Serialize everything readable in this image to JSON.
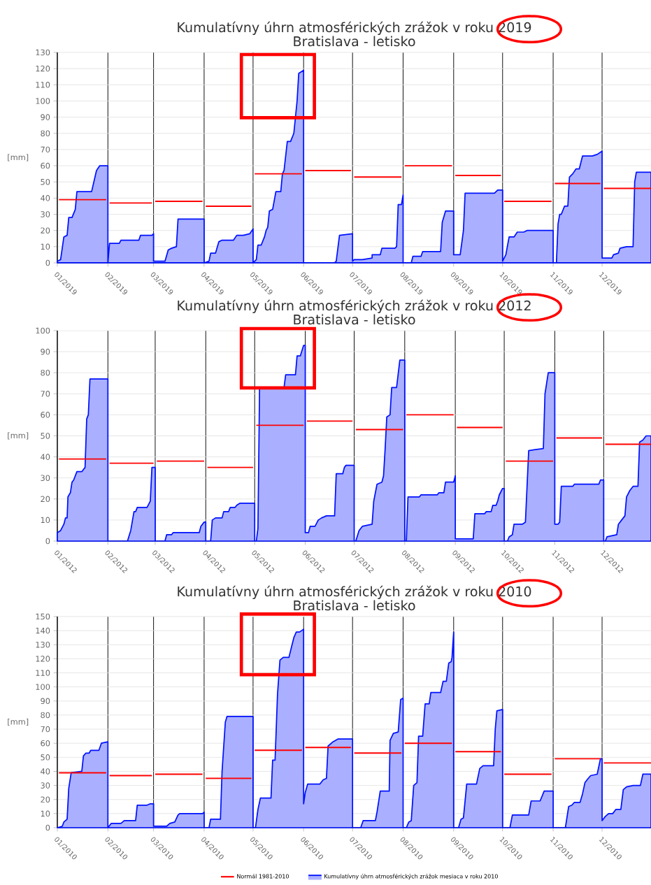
{
  "chart_data": [
    {
      "type": "area",
      "title": "Kumulatívny úhrn atmosférických zrážok v roku 2019",
      "subtitle": "Bratislava - letisko",
      "ylabel": "[mm]",
      "xlim": [
        "2019-01-01",
        "2019-12-31"
      ],
      "ylim": [
        0,
        130
      ],
      "xticks": [
        {
          "value": "2019-01",
          "label": "01/2019"
        },
        {
          "value": "2019-02",
          "label": "02/2019"
        },
        {
          "value": "2019-03",
          "label": "03/2019"
        },
        {
          "value": "2019-04",
          "label": "04/2019"
        },
        {
          "value": "2019-05",
          "label": "05/2019"
        },
        {
          "value": "2019-06",
          "label": "06/2019"
        },
        {
          "value": "2019-07",
          "label": "07/2019"
        },
        {
          "value": "2019-08",
          "label": "08/2019"
        },
        {
          "value": "2019-09",
          "label": "09/2019"
        },
        {
          "value": "2019-10",
          "label": "10/2019"
        },
        {
          "value": "2019-11",
          "label": "11/2019"
        },
        {
          "value": "2019-12",
          "label": "12/2019"
        }
      ],
      "yticks": [
        0,
        10,
        20,
        30,
        40,
        50,
        60,
        70,
        80,
        90,
        100,
        110,
        120,
        130
      ],
      "grid": true,
      "legend": false,
      "series": [
        {
          "type": "line",
          "color": "#ff0000",
          "x": [
            "2019-01-02",
            "2019-01-31",
            "2019-02-01",
            "2019-02-02",
            "2019-02-28",
            "2019-03-01",
            "2019-03-02",
            "2019-03-31",
            "2019-04-01",
            "2019-04-02",
            "2019-04-30",
            "2019-05-01",
            "2019-05-02",
            "2019-05-31",
            "2019-06-01",
            "2019-06-02",
            "2019-06-30",
            "2019-07-01",
            "2019-07-02",
            "2019-07-31",
            "2019-08-01",
            "2019-08-02",
            "2019-08-31",
            "2019-09-01",
            "2019-09-02",
            "2019-09-30",
            "2019-10-01",
            "2019-10-02",
            "2019-10-31",
            "2019-11-01",
            "2019-11-02",
            "2019-11-30",
            "2019-12-01",
            "2019-12-02",
            "2019-12-31"
          ],
          "values": [
            39,
            39,
            null,
            37,
            37,
            null,
            38,
            38,
            null,
            35,
            35,
            null,
            55,
            55,
            null,
            57,
            57,
            null,
            53,
            53,
            null,
            60,
            60,
            null,
            54,
            54,
            null,
            38,
            38,
            null,
            49,
            49,
            null,
            46,
            46
          ]
        },
        {
          "color": "#aab0ff",
          "x": [
            "2019-01-01",
            "2019-01-03",
            "2019-01-05",
            "2019-01-07",
            "2019-01-08",
            "2019-01-10",
            "2019-01-12",
            "2019-01-13",
            "2019-01-22",
            "2019-01-25",
            "2019-01-27",
            "2019-02-01",
            "2019-02-01",
            "2019-02-02",
            "2019-02-08",
            "2019-02-09",
            "2019-02-20",
            "2019-02-21",
            "2019-02-28",
            "2019-03-01",
            "2019-03-01",
            "2019-03-08",
            "2019-03-10",
            "2019-03-12",
            "2019-03-15",
            "2019-03-16",
            "2019-04-01",
            "2019-04-01",
            "2019-04-04",
            "2019-04-05",
            "2019-04-08",
            "2019-04-10",
            "2019-04-12",
            "2019-04-19",
            "2019-04-21",
            "2019-04-25",
            "2019-04-29",
            "2019-05-01",
            "2019-05-01",
            "2019-05-03",
            "2019-05-04",
            "2019-05-06",
            "2019-05-08",
            "2019-05-09",
            "2019-05-10",
            "2019-05-11",
            "2019-05-13",
            "2019-05-15",
            "2019-05-18",
            "2019-05-19",
            "2019-05-20",
            "2019-05-22",
            "2019-05-24",
            "2019-05-26",
            "2019-05-28",
            "2019-05-29",
            "2019-06-01",
            "2019-06-01",
            "2019-06-20",
            "2019-06-21",
            "2019-06-23",
            "2019-07-01",
            "2019-07-01",
            "2019-07-02",
            "2019-07-07",
            "2019-07-13",
            "2019-07-13",
            "2019-07-18",
            "2019-07-19",
            "2019-07-27",
            "2019-07-28",
            "2019-07-29",
            "2019-07-31",
            "2019-08-01",
            "2019-08-01",
            "2019-08-06",
            "2019-08-07",
            "2019-08-12",
            "2019-08-13",
            "2019-08-24",
            "2019-08-25",
            "2019-08-27",
            "2019-09-01",
            "2019-09-01",
            "2019-09-05",
            "2019-09-07",
            "2019-09-08",
            "2019-09-26",
            "2019-09-28",
            "2019-10-01",
            "2019-10-01",
            "2019-10-03",
            "2019-10-05",
            "2019-10-08",
            "2019-10-10",
            "2019-10-14",
            "2019-10-16",
            "2019-11-01",
            "2019-11-01",
            "2019-11-03",
            "2019-11-04",
            "2019-11-05",
            "2019-11-06",
            "2019-11-08",
            "2019-11-10",
            "2019-11-11",
            "2019-11-13",
            "2019-11-15",
            "2019-11-17",
            "2019-11-19",
            "2019-11-25",
            "2019-11-28",
            "2019-12-01",
            "2019-12-01",
            "2019-12-07",
            "2019-12-08",
            "2019-12-11",
            "2019-12-12",
            "2019-12-16",
            "2019-12-20",
            "2019-12-21",
            "2019-12-22",
            "2019-12-31"
          ],
          "values": [
            1,
            2,
            16,
            17,
            28,
            28,
            33,
            44,
            44,
            57,
            60,
            60,
            0,
            12,
            12,
            14,
            14,
            17,
            17,
            18,
            1,
            1,
            8,
            9,
            10,
            27,
            27,
            0,
            1,
            6,
            6,
            13,
            14,
            14,
            17,
            17,
            18,
            21,
            0,
            2,
            11,
            11,
            16,
            20,
            22,
            32,
            33,
            44,
            44,
            55,
            57,
            75,
            75,
            80,
            100,
            117,
            119,
            0,
            0,
            1,
            17,
            18,
            1,
            2,
            2,
            3,
            5,
            5,
            9,
            9,
            10,
            36,
            36,
            42,
            0,
            0,
            4,
            4,
            7,
            7,
            25,
            32,
            32,
            5,
            5,
            20,
            43,
            43,
            45,
            45,
            1,
            5,
            16,
            16,
            19,
            19,
            20,
            20,
            0,
            0,
            24,
            30,
            30,
            35,
            35,
            53,
            55,
            58,
            58,
            66,
            66,
            67,
            69,
            3,
            3,
            5,
            6,
            9,
            10,
            10,
            50,
            56,
            56
          ]
        }
      ]
    },
    {
      "type": "area",
      "title": "Kumulatívny úhrn atmosférických zrážok v roku 2012",
      "subtitle": "Bratislava - letisko",
      "ylabel": "[mm]",
      "xlim": [
        "2012-01-01",
        "2012-12-30"
      ],
      "ylim": [
        0,
        100
      ],
      "xticks": [
        {
          "value": "2012-01",
          "label": "01/2012"
        },
        {
          "value": "2012-02",
          "label": "02/2012"
        },
        {
          "value": "2012-03",
          "label": "03/2012"
        },
        {
          "value": "2012-04",
          "label": "04/2012"
        },
        {
          "value": "2012-05",
          "label": "05/2012"
        },
        {
          "value": "2012-06",
          "label": "06/2012"
        },
        {
          "value": "2012-07",
          "label": "07/2012"
        },
        {
          "value": "2012-08",
          "label": "08/2012"
        },
        {
          "value": "2012-09",
          "label": "09/2012"
        },
        {
          "value": "2012-10",
          "label": "10/2012"
        },
        {
          "value": "2012-11",
          "label": "11/2012"
        },
        {
          "value": "2012-12",
          "label": "12/2012"
        }
      ],
      "yticks": [
        0,
        10,
        20,
        30,
        40,
        50,
        60,
        70,
        80,
        90,
        100
      ],
      "grid": true,
      "legend": false,
      "series": [
        {
          "type": "line",
          "color": "#ff0000",
          "x": [
            "2012-01-02",
            "2012-01-31",
            "2012-02-01",
            "2012-02-02",
            "2012-02-29",
            "2012-03-01",
            "2012-03-02",
            "2012-03-31",
            "2012-04-01",
            "2012-04-02",
            "2012-04-30",
            "2012-05-01",
            "2012-05-02",
            "2012-05-31",
            "2012-06-01",
            "2012-06-02",
            "2012-06-30",
            "2012-07-01",
            "2012-07-02",
            "2012-07-31",
            "2012-08-01",
            "2012-08-02",
            "2012-08-31",
            "2012-09-01",
            "2012-09-02",
            "2012-09-30",
            "2012-10-01",
            "2012-10-02",
            "2012-10-31",
            "2012-11-01",
            "2012-11-02",
            "2012-11-30",
            "2012-12-01",
            "2012-12-02",
            "2012-12-30"
          ],
          "values": [
            39,
            39,
            null,
            37,
            37,
            null,
            38,
            38,
            null,
            35,
            35,
            null,
            55,
            55,
            null,
            57,
            57,
            null,
            53,
            53,
            null,
            60,
            60,
            null,
            54,
            54,
            null,
            38,
            38,
            null,
            49,
            49,
            null,
            46,
            46
          ]
        },
        {
          "color": "#aab0ff",
          "x": [
            "2012-01-01",
            "2012-01-03",
            "2012-01-05",
            "2012-01-06",
            "2012-01-07",
            "2012-01-07T12:00",
            "2012-01-09",
            "2012-01-10",
            "2012-01-11",
            "2012-01-13",
            "2012-01-16",
            "2012-01-18",
            "2012-01-19",
            "2012-01-20",
            "2012-01-21",
            "2012-02-01",
            "2012-02-01",
            "2012-02-13",
            "2012-02-15",
            "2012-02-17",
            "2012-02-18",
            "2012-02-19",
            "2012-02-25",
            "2012-02-27",
            "2012-02-28",
            "2012-02-29",
            "2012-03-01",
            "2012-03-01",
            "2012-03-07",
            "2012-03-08",
            "2012-03-11",
            "2012-03-12",
            "2012-03-28",
            "2012-03-29",
            "2012-03-31",
            "2012-04-01",
            "2012-04-01",
            "2012-04-04",
            "2012-04-05",
            "2012-04-07",
            "2012-04-11",
            "2012-04-12",
            "2012-04-15",
            "2012-04-16",
            "2012-04-19",
            "2012-04-20",
            "2012-04-22",
            "2012-05-01",
            "2012-05-01",
            "2012-05-02",
            "2012-05-03",
            "2012-05-04",
            "2012-05-19",
            "2012-05-20",
            "2012-05-26",
            "2012-05-27",
            "2012-05-29",
            "2012-05-31",
            "2012-06-01",
            "2012-06-01",
            "2012-06-03",
            "2012-06-04",
            "2012-06-07",
            "2012-06-09",
            "2012-06-11",
            "2012-06-14",
            "2012-06-19",
            "2012-06-20",
            "2012-06-24",
            "2012-06-25",
            "2012-06-26",
            "2012-07-01",
            "2012-07-01",
            "2012-07-02",
            "2012-07-04",
            "2012-07-06",
            "2012-07-12",
            "2012-07-13",
            "2012-07-15",
            "2012-07-18",
            "2012-07-19",
            "2012-07-20",
            "2012-07-21",
            "2012-07-23",
            "2012-07-24",
            "2012-07-27",
            "2012-07-29",
            "2012-08-01",
            "2012-08-01",
            "2012-08-02",
            "2012-08-03",
            "2012-08-10",
            "2012-08-11",
            "2012-08-21",
            "2012-08-22",
            "2012-08-25",
            "2012-08-26",
            "2012-08-31",
            "2012-09-01",
            "2012-09-01",
            "2012-09-12",
            "2012-09-13",
            "2012-09-19",
            "2012-09-20",
            "2012-09-23",
            "2012-09-24",
            "2012-09-26",
            "2012-09-27",
            "2012-09-28",
            "2012-09-30",
            "2012-10-01",
            "2012-10-01",
            "2012-10-03",
            "2012-10-04",
            "2012-10-06",
            "2012-10-07",
            "2012-10-12",
            "2012-10-14",
            "2012-10-16",
            "2012-10-25",
            "2012-10-26",
            "2012-10-28",
            "2012-11-01",
            "2012-11-01",
            "2012-11-03",
            "2012-11-04",
            "2012-11-05",
            "2012-11-12",
            "2012-11-13",
            "2012-11-28",
            "2012-11-29",
            "2012-12-01",
            "2012-12-01",
            "2012-12-02",
            "2012-12-03",
            "2012-12-09",
            "2012-12-10",
            "2012-12-12",
            "2012-12-14",
            "2012-12-15",
            "2012-12-17",
            "2012-12-19",
            "2012-12-22",
            "2012-12-23",
            "2012-12-25",
            "2012-12-27",
            "2012-12-30"
          ],
          "values": [
            4,
            5,
            8,
            11,
            11,
            21,
            23,
            28,
            29,
            33,
            33,
            35,
            58,
            60,
            77,
            77,
            0,
            0,
            5,
            14,
            14,
            16,
            16,
            19,
            35,
            35,
            35,
            0,
            0,
            3,
            3,
            4,
            4,
            7,
            9,
            9,
            0,
            0,
            10,
            11,
            11,
            14,
            14,
            16,
            16,
            17,
            18,
            18,
            0,
            0,
            6,
            73,
            73,
            79,
            79,
            88,
            88,
            93,
            93,
            4,
            4,
            7,
            7,
            10,
            11,
            12,
            12,
            32,
            32,
            35,
            36,
            36,
            0,
            0,
            5,
            7,
            8,
            19,
            27,
            28,
            31,
            44,
            59,
            60,
            73,
            73,
            86,
            86,
            0,
            0,
            21,
            21,
            22,
            22,
            23,
            23,
            28,
            28,
            31,
            1,
            1,
            13,
            13,
            14,
            14,
            17,
            17,
            19,
            22,
            25,
            25,
            0,
            0,
            2,
            3,
            8,
            8,
            9,
            43,
            44,
            70,
            80,
            80,
            8,
            8,
            9,
            26,
            26,
            27,
            27,
            29,
            29,
            0,
            0,
            2,
            3,
            8,
            10,
            12,
            21,
            24,
            26,
            26,
            47,
            48,
            50,
            50
          ]
        }
      ]
    },
    {
      "type": "area",
      "title": "Kumulatívny úhrn atmosférických zrážok v roku 2010",
      "subtitle": "Bratislava - letisko",
      "ylabel": "[mm]",
      "xlim": [
        "2010-01-01",
        "2010-12-31"
      ],
      "ylim": [
        0,
        150
      ],
      "xticks": [
        {
          "value": "2010-01",
          "label": "01/2010"
        },
        {
          "value": "2010-02",
          "label": "02/2010"
        },
        {
          "value": "2010-03",
          "label": "03/2010"
        },
        {
          "value": "2010-04",
          "label": "04/2010"
        },
        {
          "value": "2010-05",
          "label": "05/2010"
        },
        {
          "value": "2010-06",
          "label": "06/2010"
        },
        {
          "value": "2010-07",
          "label": "07/2010"
        },
        {
          "value": "2010-08",
          "label": "08/2010"
        },
        {
          "value": "2010-09",
          "label": "09/2010"
        },
        {
          "value": "2010-10",
          "label": "10/2010"
        },
        {
          "value": "2010-11",
          "label": "11/2010"
        },
        {
          "value": "2010-12",
          "label": "12/2010"
        }
      ],
      "yticks": [
        0,
        10,
        20,
        30,
        40,
        50,
        60,
        70,
        80,
        90,
        100,
        110,
        120,
        130,
        140,
        150
      ],
      "grid": true,
      "legend": "bottom",
      "series": [
        {
          "type": "line",
          "name": "Normál 1981-2010",
          "color": "#ff0000",
          "x": [
            "2010-01-02",
            "2010-01-31",
            "2010-02-01",
            "2010-02-02",
            "2010-02-28",
            "2010-03-01",
            "2010-03-02",
            "2010-03-31",
            "2010-04-01",
            "2010-04-02",
            "2010-04-30",
            "2010-05-01",
            "2010-05-02",
            "2010-05-31",
            "2010-06-01",
            "2010-06-02",
            "2010-06-30",
            "2010-07-01",
            "2010-07-02",
            "2010-07-31",
            "2010-08-01",
            "2010-08-02",
            "2010-08-31",
            "2010-09-01",
            "2010-09-02",
            "2010-09-30",
            "2010-10-01",
            "2010-10-02",
            "2010-10-31",
            "2010-11-01",
            "2010-11-02",
            "2010-11-30",
            "2010-12-01",
            "2010-12-02",
            "2010-12-31"
          ],
          "values": [
            39,
            39,
            null,
            37,
            37,
            null,
            38,
            38,
            null,
            35,
            35,
            null,
            55,
            55,
            null,
            57,
            57,
            null,
            53,
            53,
            null,
            60,
            60,
            null,
            54,
            54,
            null,
            38,
            38,
            null,
            49,
            49,
            null,
            46,
            46
          ]
        },
        {
          "name": "Kumulatívny úhrn atmosférických zrážok mesiaca v roku 2010",
          "color": "#aab0ff",
          "x": [
            "2010-01-01",
            "2010-01-04",
            "2010-01-05",
            "2010-01-07",
            "2010-01-08",
            "2010-01-09T12:00",
            "2010-01-16",
            "2010-01-17",
            "2010-01-18T12:00",
            "2010-01-20T12:00",
            "2010-01-21T12:00",
            "2010-01-26T12:00",
            "2010-01-28",
            "2010-02-01",
            "2010-02-01",
            "2010-02-03",
            "2010-02-09",
            "2010-02-11",
            "2010-02-18",
            "2010-02-19",
            "2010-02-25",
            "2010-02-27",
            "2010-03-01",
            "2010-03-01",
            "2010-03-09",
            "2010-03-11",
            "2010-03-14",
            "2010-03-16",
            "2010-03-17",
            "2010-03-31",
            "2010-04-01",
            "2010-04-01",
            "2010-04-04",
            "2010-04-05",
            "2010-04-11",
            "2010-04-12",
            "2010-04-14",
            "2010-04-15",
            "2010-05-01",
            "2010-05-01",
            "2010-05-02T12:00",
            "2010-05-04",
            "2010-05-05T12:00",
            "2010-05-12",
            "2010-05-13",
            "2010-05-14T12:00",
            "2010-05-16",
            "2010-05-17T12:00",
            "2010-05-19T12:00",
            "2010-05-23",
            "2010-05-24T12:00",
            "2010-05-26",
            "2010-05-27T12:00",
            "2010-05-29T12:00",
            "2010-06-01",
            "2010-06-01",
            "2010-06-02",
            "2010-06-03T12:00",
            "2010-06-11",
            "2010-06-13",
            "2010-06-15",
            "2010-06-16",
            "2010-06-19",
            "2010-06-22",
            "2010-07-01",
            "2010-07-01",
            "2010-07-06",
            "2010-07-07T12:00",
            "2010-07-15",
            "2010-07-16",
            "2010-07-18",
            "2010-07-23T12:00",
            "2010-07-24",
            "2010-07-26",
            "2010-07-29",
            "2010-07-30T12:00",
            "2010-08-01",
            "2010-08-01",
            "2010-08-03",
            "2010-08-04T12:00",
            "2010-08-06",
            "2010-08-07T12:00",
            "2010-08-09T12:00",
            "2010-08-10T12:00",
            "2010-08-13",
            "2010-08-14T12:00",
            "2010-08-17",
            "2010-08-18",
            "2010-08-24",
            "2010-08-25T12:00",
            "2010-08-27T12:00",
            "2010-08-29",
            "2010-08-30T12:00",
            "2010-08-31",
            "2010-09-01",
            "2010-09-01",
            "2010-09-04",
            "2010-09-05T12:00",
            "2010-09-07",
            "2010-09-09",
            "2010-09-15",
            "2010-09-17",
            "2010-09-19",
            "2010-09-25T12:00",
            "2010-09-26T12:00",
            "2010-09-27T12:00",
            "2010-10-01",
            "2010-10-01",
            "2010-10-05T12:00",
            "2010-10-07",
            "2010-10-17",
            "2010-10-18T12:00",
            "2010-10-24",
            "2010-10-26T12:00",
            "2010-11-01",
            "2010-11-01",
            "2010-11-08T12:00",
            "2010-11-10T12:00",
            "2010-11-12T12:00",
            "2010-11-14",
            "2010-11-17T12:00",
            "2010-11-19",
            "2010-11-20T12:00",
            "2010-11-22T12:00",
            "2010-11-24",
            "2010-11-28",
            "2010-11-30",
            "2010-12-01",
            "2010-12-01",
            "2010-12-03",
            "2010-12-05",
            "2010-12-07T12:00",
            "2010-12-09T12:00",
            "2010-12-12T12:00",
            "2010-12-14",
            "2010-12-16",
            "2010-12-20",
            "2010-12-24T12:00",
            "2010-12-26",
            "2010-12-31"
          ],
          "values": [
            0,
            1,
            4,
            6,
            28,
            39,
            40,
            51,
            53,
            53,
            55,
            55,
            60,
            61,
            0,
            3,
            3,
            5,
            5,
            16,
            16,
            17,
            17,
            1,
            1,
            3,
            4,
            9,
            10,
            10,
            11,
            0,
            0,
            6,
            6,
            40,
            75,
            79,
            79,
            0,
            0,
            13,
            21,
            21,
            48,
            48,
            95,
            119,
            121,
            121,
            128,
            135,
            139,
            139,
            141,
            17,
            25,
            31,
            31,
            34,
            35,
            58,
            61,
            63,
            63,
            0,
            0,
            5,
            5,
            11,
            26,
            26,
            62,
            67,
            68,
            91,
            92,
            0,
            0,
            4,
            5,
            30,
            32,
            65,
            65,
            88,
            88,
            96,
            96,
            104,
            104,
            117,
            118,
            121,
            139,
            0,
            0,
            6,
            7,
            31,
            31,
            42,
            44,
            44,
            70,
            83,
            84,
            0,
            0,
            9,
            9,
            19,
            19,
            26,
            26,
            0,
            0,
            15,
            16,
            18,
            18,
            24,
            32,
            35,
            37,
            38,
            49,
            49,
            5,
            8,
            10,
            10,
            13,
            13,
            27,
            29,
            30,
            30,
            38,
            38
          ]
        }
      ]
    }
  ]
}
